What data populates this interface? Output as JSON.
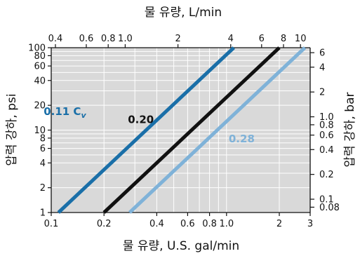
{
  "chart_data": {
    "type": "line",
    "title": "",
    "log_x": true,
    "log_y": true,
    "grid": true,
    "xlabel_bottom": "물 유량, U.S. gal/min",
    "xlabel_top": "물 유량, L/min",
    "ylabel_left": "압력 강하, psi",
    "ylabel_right": "압력 강하, bar",
    "xlim": [
      0.1,
      3
    ],
    "ylim": [
      1,
      100
    ],
    "x_ticks_bottom": [
      {
        "value": 0.1,
        "label": "0.1"
      },
      {
        "value": 0.2,
        "label": "0.2"
      },
      {
        "value": 0.4,
        "label": "0.4"
      },
      {
        "value": 0.6,
        "label": "0.6"
      },
      {
        "value": 0.8,
        "label": "0.8"
      },
      {
        "value": 1.0,
        "label": "1.0"
      },
      {
        "value": 2,
        "label": "2"
      },
      {
        "value": 3,
        "label": "3"
      }
    ],
    "x_ticks_top": [
      {
        "value": 0.4,
        "label": "0.4"
      },
      {
        "value": 0.6,
        "label": "0.6"
      },
      {
        "value": 0.8,
        "label": "0.8"
      },
      {
        "value": 1.0,
        "label": "1.0"
      },
      {
        "value": 2,
        "label": "2"
      },
      {
        "value": 4,
        "label": "4"
      },
      {
        "value": 6,
        "label": "6"
      },
      {
        "value": 8,
        "label": "8"
      },
      {
        "value": 10,
        "label": "10"
      }
    ],
    "y_ticks_left": [
      {
        "value": 1,
        "label": "1"
      },
      {
        "value": 2,
        "label": "2"
      },
      {
        "value": 4,
        "label": "4"
      },
      {
        "value": 6,
        "label": "6"
      },
      {
        "value": 8,
        "label": "8"
      },
      {
        "value": 10,
        "label": "10"
      },
      {
        "value": 20,
        "label": "20"
      },
      {
        "value": 40,
        "label": "40"
      },
      {
        "value": 60,
        "label": "60"
      },
      {
        "value": 80,
        "label": "80"
      },
      {
        "value": 100,
        "label": "100"
      }
    ],
    "y_ticks_right": [
      {
        "value": 0.08,
        "label": "0.08"
      },
      {
        "value": 0.1,
        "label": "0.1"
      },
      {
        "value": 0.2,
        "label": "0.2"
      },
      {
        "value": 0.4,
        "label": "0.4"
      },
      {
        "value": 0.6,
        "label": "0.6"
      },
      {
        "value": 0.8,
        "label": "0.8"
      },
      {
        "value": 1.0,
        "label": "1.0"
      },
      {
        "value": 2,
        "label": "2"
      },
      {
        "value": 4,
        "label": "4"
      },
      {
        "value": 6,
        "label": "6"
      }
    ],
    "series": [
      {
        "name": "0.11 Cv",
        "name_main": "0.11 C",
        "name_sub": "v",
        "color": "#1a6fa8",
        "x": [
          0.11,
          1.1
        ],
        "y": [
          1,
          100
        ]
      },
      {
        "name": "0.20",
        "color": "#111111",
        "x": [
          0.2,
          2.0
        ],
        "y": [
          1,
          100
        ]
      },
      {
        "name": "0.28",
        "color": "#7fb2d8",
        "x": [
          0.28,
          2.8
        ],
        "y": [
          1,
          100
        ]
      }
    ],
    "colors": {
      "background": "#d9d9d9",
      "grid": "#ffffff"
    }
  }
}
